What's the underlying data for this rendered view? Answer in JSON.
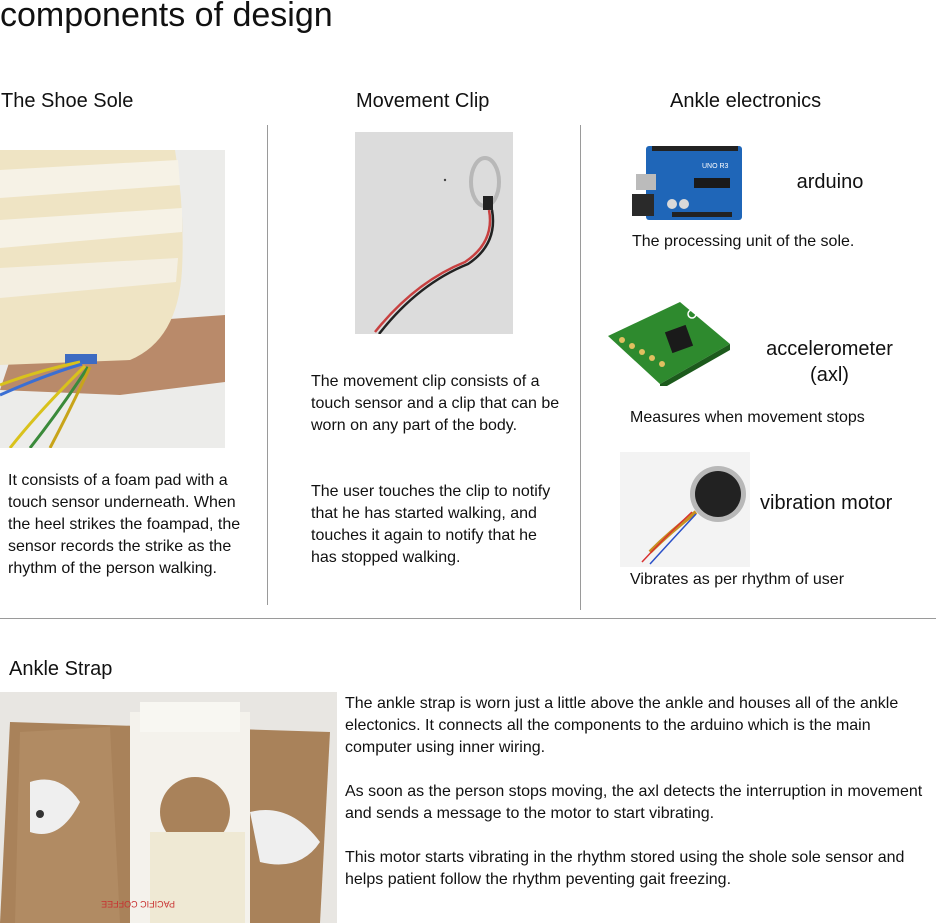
{
  "page": {
    "title": "components of design"
  },
  "sections": {
    "shoe_sole": {
      "heading": "The Shoe Sole",
      "description": "It consists of a foam pad with a touch sensor underneath. When the heel strikes the foampad, the sensor records the strike as the rhythm of the person walking."
    },
    "movement_clip": {
      "heading": "Movement Clip",
      "description_1": "The movement clip consists of a touch sensor and a clip that can be worn on any part of the body.",
      "description_2": "The user touches the clip to notify that he has started walking, and touches it again to notify that he has stopped walking."
    },
    "ankle_electronics": {
      "heading": "Ankle electronics",
      "components": [
        {
          "name": "arduino",
          "caption": "The processing unit of the sole."
        },
        {
          "name": "accelerometer (axl)",
          "caption": "Measures when movement stops"
        },
        {
          "name": "vibration motor",
          "caption": "Vibrates as per rhythm of user"
        }
      ]
    },
    "ankle_strap": {
      "heading": "Ankle Strap",
      "paragraph_1": "The ankle strap is worn just a little above the ankle and houses all of the ankle electonics. It connects all the components to the arduino which is the main computer using inner wiring.",
      "paragraph_2": "As soon as the person stops moving, the axl detects the interruption in movement and sends a message to the motor to start vibrating.",
      "paragraph_3": "This motor starts vibrating in the rhythm stored using the shole sole sensor and helps patient follow the rhythm peventing gait freezing.",
      "box_print": "PACIFIC COFFEE"
    }
  }
}
